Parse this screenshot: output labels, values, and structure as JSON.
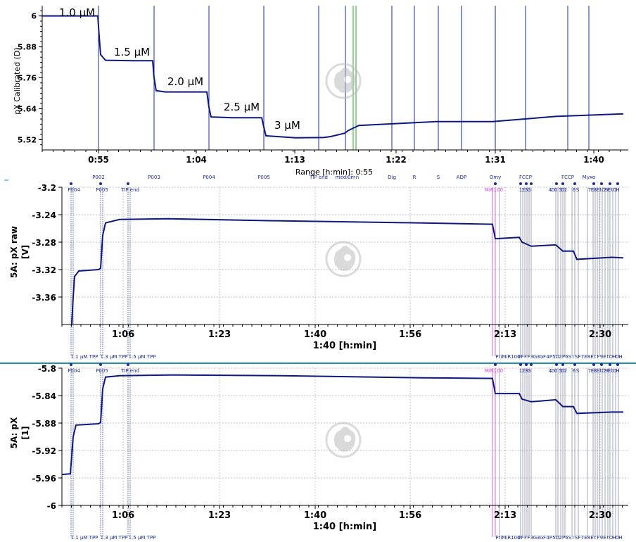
{
  "colors": {
    "trace": "#0d1880",
    "event_line": "#1c2aa0",
    "event_label": "#1c2aa0",
    "mir_marker": "#d044d0",
    "green_marker": "#2aa02a",
    "separator": "#1f8fb6",
    "grid": "#c0c0c0",
    "watermark": "#bdbdbd"
  },
  "watermark_icon": "pomegranate-logo-icon",
  "chart_data": [
    {
      "type": "line",
      "panel": "top",
      "ylabel": "pX Calibrated (D)",
      "xlabel": "Range [h:min]: 0:55",
      "x_unit": "minutes",
      "xlim": [
        46,
        106
      ],
      "ylim": [
        5.48,
        6.04
      ],
      "y_ticks": [
        "6",
        "5.88",
        "5.76",
        "5.64",
        "5.52"
      ],
      "y_tick_values": [
        6,
        5.88,
        5.76,
        5.64,
        5.52
      ],
      "x_ticks": [
        "0:55",
        "1:04",
        "1:13",
        "1:22",
        "1:31",
        "1:40"
      ],
      "x_tick_values": [
        55,
        64,
        73,
        82,
        91,
        100
      ],
      "grid": true,
      "series": [
        {
          "x": [
            46,
            54.8,
            55.0,
            55.3,
            56,
            59,
            63.7,
            63.9,
            64.1,
            65,
            68,
            72.7,
            72.9,
            73.1,
            75,
            78,
            81.5,
            81.7,
            82,
            85,
            86,
            86.3,
            89,
            89.3,
            90,
            95,
            98,
            102,
            105.5
          ],
          "y": [
            6.0,
            6.0,
            5.92,
            5.85,
            5.828,
            5.826,
            5.826,
            5.76,
            5.71,
            5.705,
            5.705,
            5.705,
            5.645,
            5.608,
            5.605,
            5.605,
            5.605,
            5.58,
            5.535,
            5.527,
            5.528,
            5.532,
            5.545,
            5.555,
            5.575,
            5.59,
            5.59,
            5.61,
            5.62
          ]
        }
      ],
      "annotations": [
        "1.0 µM",
        "1.5 µM",
        "2.0 µM",
        "2.5 µM",
        "3 µM"
      ],
      "annotation_x": [
        46.5,
        56,
        65,
        74,
        83
      ],
      "annotation_y": [
        6.01,
        5.84,
        5.72,
        5.625,
        5.55
      ],
      "events": [
        "P002",
        "P003",
        "P004",
        "P005",
        "TIP end",
        "medium",
        "n",
        "Dig",
        "R",
        "S",
        "ADP",
        "Omy",
        "FCCP",
        "FCCP",
        "Myxo"
      ]
    },
    {
      "type": "line",
      "panel": "middle",
      "ylabel": "5A: pX raw [V]",
      "xlabel": "1:40 [h:min]",
      "y_ticks": [
        "-3.2",
        "-3.24",
        "-3.28",
        "-3.32",
        "-3.36"
      ],
      "y_tick_values": [
        -3.2,
        -3.24,
        -3.28,
        -3.32,
        -3.36
      ],
      "ylim": [
        -3.4,
        -3.2
      ],
      "x_ticks": [
        "1:06",
        "1:23",
        "1:40",
        "1:56",
        "2:13",
        "2:30"
      ],
      "grid": true,
      "top_labels": [
        "P004",
        "P005",
        "TIP end",
        "MiR100",
        "1",
        "2",
        "3",
        "G",
        "4",
        "D",
        "0",
        "5",
        "D",
        "2",
        "6",
        "S",
        "7",
        "E",
        "8",
        "E",
        "t",
        "O",
        "9",
        "E",
        "t",
        "O",
        "H"
      ],
      "bottom_labels": [
        "1.1 µM TPP",
        "1.3 µM TPP",
        "1.5 µM TPP",
        "PriMiR100",
        "0",
        "F",
        "F",
        "F",
        "3",
        "G",
        "3",
        "G",
        "F",
        "4",
        "P",
        "5",
        "D",
        "2",
        "P",
        "6",
        "S",
        "I",
        "S",
        "F",
        "7",
        "E",
        "8",
        "E",
        "t",
        "F",
        "9",
        "E",
        "t",
        "O",
        "H",
        "O",
        "H"
      ]
    },
    {
      "type": "line",
      "panel": "bottom",
      "ylabel": "5A: pX [1]",
      "xlabel": "1:40 [h:min]",
      "y_ticks": [
        "-5.8",
        "-5.84",
        "-5.88",
        "-5.92",
        "-5.96",
        "-6"
      ],
      "y_tick_values": [
        -5.8,
        -5.84,
        -5.88,
        -5.92,
        -5.96,
        -6
      ],
      "ylim": [
        -6,
        -5.8
      ],
      "x_ticks": [
        "1:06",
        "1:23",
        "1:40",
        "1:56",
        "2:13",
        "2:30"
      ],
      "grid": true
    }
  ],
  "labels": {
    "top_ylabel": "pX Calibrated (D)",
    "top_xlabel": "Range [h:min]: 0:55",
    "mid_ylabel_1": "5A: pX raw",
    "mid_ylabel_2": "[V]",
    "bot_ylabel_1": "5A: pX",
    "bot_ylabel_2": "[1]",
    "mid_xlabel": "1:40 [h:min]",
    "bot_xlabel": "1:40 [h:min]"
  }
}
